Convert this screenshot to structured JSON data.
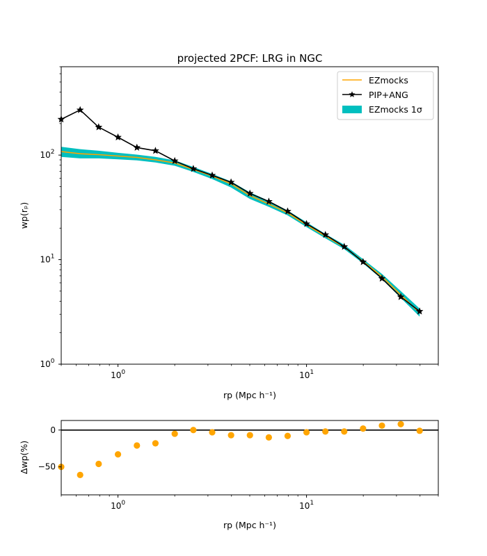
{
  "colors": {
    "model": "#ffa500",
    "measurement": "#000000",
    "band": "#00bfbf",
    "residual": "#ffa500"
  },
  "chart_data": [
    {
      "type": "line",
      "title": "projected 2PCF: LRG in NGC",
      "xlabel": "rp (Mpc h⁻¹)",
      "ylabel": "wp(rₚ)",
      "xscale": "log",
      "yscale": "log",
      "xlim": [
        0.5,
        50
      ],
      "ylim": [
        1,
        700
      ],
      "x_ticks": [
        {
          "v": 1,
          "base": "10",
          "exp": "0"
        },
        {
          "v": 10,
          "base": "10",
          "exp": "1"
        }
      ],
      "y_ticks": [
        {
          "v": 1,
          "base": "10",
          "exp": "0"
        },
        {
          "v": 10,
          "base": "10",
          "exp": "1"
        },
        {
          "v": 100,
          "base": "10",
          "exp": "2"
        }
      ],
      "legend": {
        "position": "upper right",
        "entries": [
          {
            "label": "EZmocks",
            "style": "line",
            "color": "#ffa500"
          },
          {
            "label": "PIP+ANG",
            "style": "line-star",
            "color": "#000000"
          },
          {
            "label": "EZmocks 1σ",
            "style": "patch",
            "color": "#00bfbf"
          }
        ]
      },
      "series": [
        {
          "name": "EZmocks",
          "style": "line",
          "x": [
            0.5,
            0.63,
            0.79,
            1.0,
            1.26,
            1.58,
            2.0,
            2.51,
            3.16,
            3.98,
            5.01,
            6.31,
            7.94,
            10.0,
            12.59,
            15.85,
            19.95,
            25.12,
            31.62,
            39.81
          ],
          "y": [
            108,
            103,
            101,
            98,
            95,
            90,
            84,
            73,
            63,
            53,
            41,
            34,
            28,
            21.5,
            16.8,
            13.2,
            9.6,
            6.9,
            4.6,
            3.1
          ]
        },
        {
          "name": "PIP+ANG",
          "style": "line-star",
          "x": [
            0.5,
            0.63,
            0.79,
            1.0,
            1.26,
            1.58,
            2.0,
            2.51,
            3.16,
            3.98,
            5.01,
            6.31,
            7.94,
            10.0,
            12.59,
            15.85,
            19.95,
            25.12,
            31.62,
            39.81
          ],
          "y": [
            220,
            270,
            185,
            148,
            118,
            110,
            88,
            74,
            64,
            55,
            43,
            36,
            29,
            22,
            17.3,
            13.3,
            9.5,
            6.6,
            4.4,
            3.2
          ]
        },
        {
          "name": "EZmocks 1σ",
          "style": "band",
          "x": [
            0.5,
            0.63,
            0.79,
            1.0,
            1.26,
            1.58,
            2.0,
            2.51,
            3.16,
            3.98,
            5.01,
            6.31,
            7.94,
            10.0,
            12.59,
            15.85,
            19.95,
            25.12,
            31.62,
            39.81
          ],
          "y_low": [
            96,
            93,
            93,
            91,
            89,
            85,
            79,
            69,
            59,
            49,
            38,
            32,
            26.5,
            20.5,
            16.0,
            12.6,
            9.2,
            6.5,
            4.3,
            2.85
          ],
          "y_high": [
            120,
            114,
            110,
            105,
            101,
            96,
            89,
            77,
            66,
            56,
            44,
            36.5,
            29.5,
            22.8,
            17.6,
            13.9,
            10.1,
            7.3,
            5.0,
            3.4
          ]
        }
      ]
    },
    {
      "type": "scatter",
      "xlabel": "rp (Mpc h⁻¹)",
      "ylabel": "Δwp(%)",
      "xscale": "log",
      "xlim": [
        0.5,
        50
      ],
      "ylim": [
        -88,
        13
      ],
      "x_ticks": [
        {
          "v": 1,
          "base": "10",
          "exp": "0"
        },
        {
          "v": 10,
          "base": "10",
          "exp": "1"
        }
      ],
      "y_ticks": [
        {
          "v": 0,
          "label": "0"
        },
        {
          "v": -50,
          "label": "−50"
        }
      ],
      "reference_line": 0,
      "series": [
        {
          "name": "Δwp",
          "x": [
            0.5,
            0.63,
            0.79,
            1.0,
            1.26,
            1.58,
            2.0,
            2.51,
            3.16,
            3.98,
            5.01,
            6.31,
            7.94,
            10.0,
            12.59,
            15.85,
            19.95,
            25.12,
            31.62,
            39.81
          ],
          "y": [
            -50,
            -61,
            -46,
            -33,
            -21,
            -18,
            -5,
            0,
            -3,
            -7,
            -7,
            -10,
            -8,
            -3,
            -2,
            -2,
            2,
            6,
            8,
            -1
          ]
        }
      ]
    }
  ]
}
